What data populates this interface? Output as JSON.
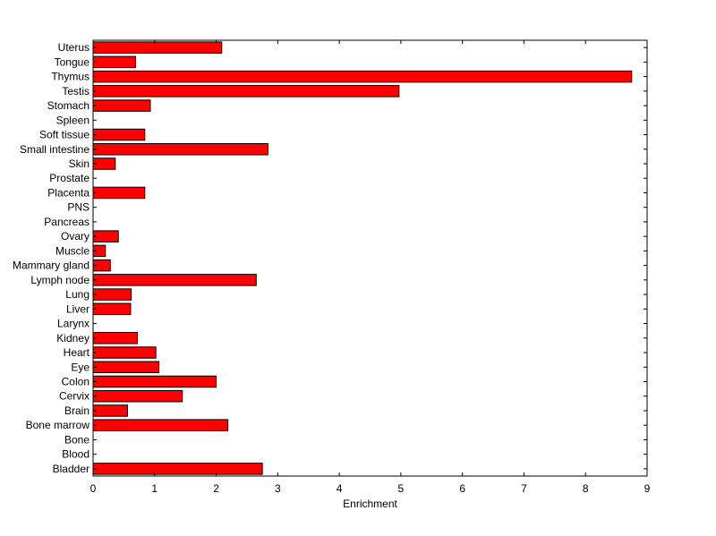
{
  "chart_data": {
    "type": "bar",
    "orientation": "horizontal",
    "xlabel": "Enrichment",
    "ylabel": "",
    "title": "",
    "xlim": [
      0,
      9
    ],
    "xticks": [
      0,
      1,
      2,
      3,
      4,
      5,
      6,
      7,
      8,
      9
    ],
    "grid": false,
    "bar_color": "#ff0000",
    "categories": [
      "Uterus",
      "Tongue",
      "Thymus",
      "Testis",
      "Stomach",
      "Spleen",
      "Soft tissue",
      "Small intestine",
      "Skin",
      "Prostate",
      "Placenta",
      "PNS",
      "Pancreas",
      "Ovary",
      "Muscle",
      "Mammary gland",
      "Lymph node",
      "Lung",
      "Liver",
      "Larynx",
      "Kidney",
      "Heart",
      "Eye",
      "Colon",
      "Cervix",
      "Brain",
      "Bone marrow",
      "Bone",
      "Blood",
      "Bladder"
    ],
    "values": [
      2.09,
      0.69,
      8.75,
      4.97,
      0.93,
      0,
      0.84,
      2.84,
      0.36,
      0,
      0.84,
      0,
      0,
      0.41,
      0.2,
      0.28,
      2.65,
      0.62,
      0.61,
      0,
      0.72,
      1.02,
      1.07,
      2.0,
      1.45,
      0.56,
      2.19,
      0,
      0,
      2.75
    ]
  }
}
